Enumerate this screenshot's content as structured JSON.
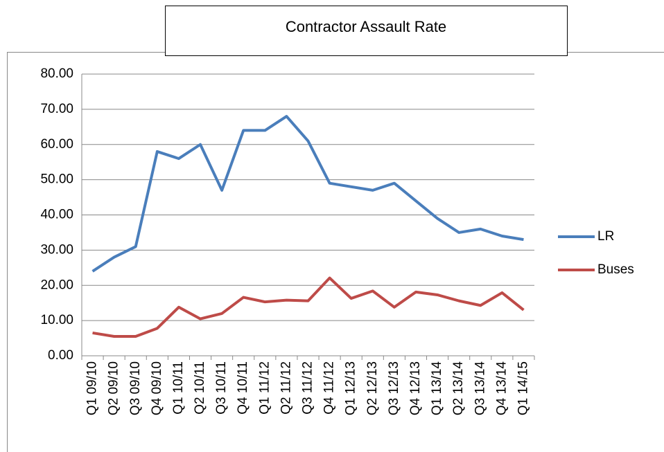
{
  "chart_data": {
    "type": "line",
    "title": "Contractor Assault Rate",
    "categories": [
      "Q1 09/10",
      "Q2 09/10",
      "Q3 09/10",
      "Q4 09/10",
      "Q1 10/11",
      "Q2 10/11",
      "Q3 10/11",
      "Q4 10/11",
      "Q1 11/12",
      "Q2 11/12",
      "Q3 11/12",
      "Q4 11/12",
      "Q1 12/13",
      "Q2 12/13",
      "Q3 12/13",
      "Q4 12/13",
      "Q1 13/14",
      "Q2 13/14",
      "Q3 13/14",
      "Q4 13/14",
      "Q1 14/15"
    ],
    "series": [
      {
        "name": "LR",
        "color": "#4a7ebb",
        "values": [
          24,
          28,
          31,
          58,
          56,
          60,
          47,
          64,
          64,
          68,
          61,
          49,
          48,
          47,
          49,
          44,
          39,
          35,
          36,
          34,
          33
        ]
      },
      {
        "name": "Buses",
        "color": "#be4b48",
        "values": [
          6.5,
          5.5,
          5.5,
          7.8,
          13.8,
          10.5,
          12,
          16.6,
          15.3,
          15.8,
          15.6,
          22.1,
          16.3,
          18.4,
          13.8,
          18.1,
          17.3,
          15.6,
          14.3,
          17.9,
          13
        ]
      }
    ],
    "ylim": [
      0,
      80
    ],
    "yticks": [
      {
        "value": 0,
        "label": "0.00"
      },
      {
        "value": 10,
        "label": "10.00"
      },
      {
        "value": 20,
        "label": "20.00"
      },
      {
        "value": 30,
        "label": "30.00"
      },
      {
        "value": 40,
        "label": "40.00"
      },
      {
        "value": 50,
        "label": "50.00"
      },
      {
        "value": 60,
        "label": "60.00"
      },
      {
        "value": 70,
        "label": "70.00"
      },
      {
        "value": 80,
        "label": "80.00"
      }
    ],
    "grid": true,
    "legend": "right"
  }
}
